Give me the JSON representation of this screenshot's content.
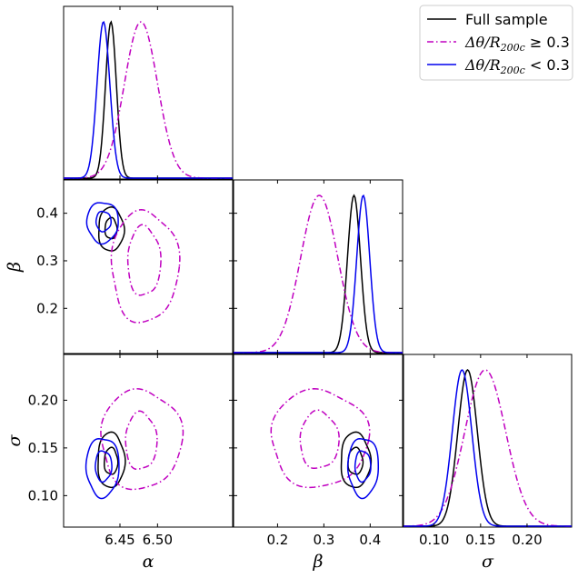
{
  "chart_data": {
    "type": "corner",
    "parameters": [
      "α",
      "β",
      "σ"
    ],
    "ranges": {
      "alpha": [
        6.375,
        6.6
      ],
      "beta": [
        0.105,
        0.47
      ],
      "sigma": [
        0.067,
        0.248
      ]
    },
    "ticks": {
      "alpha": {
        "values": [
          6.45,
          6.5
        ],
        "labels": [
          "6.45",
          "6.50"
        ]
      },
      "beta": {
        "values": [
          0.2,
          0.3,
          0.4
        ],
        "labels": [
          "0.2",
          "0.3",
          "0.4"
        ]
      },
      "sigma": {
        "values": [
          0.1,
          0.15,
          0.2
        ],
        "labels": [
          "0.10",
          "0.15",
          "0.20"
        ]
      }
    },
    "legend": {
      "placement": "top-right",
      "entries": [
        {
          "label": "Full sample",
          "math_sub": "",
          "math_tail": "",
          "color": "#000000",
          "dash": "solid"
        },
        {
          "label": "Δθ/R",
          "math_sub": "200c",
          "math_tail": " ≥ 0.3",
          "color": "#c000c0",
          "dash": "dashdot"
        },
        {
          "label": "Δθ/R",
          "math_sub": "200c",
          "math_tail": " < 0.3",
          "color": "#0000ee",
          "dash": "solid"
        }
      ]
    },
    "series": [
      {
        "name": "Full sample",
        "color": "#000000",
        "dash": "solid",
        "marginals": {
          "alpha": {
            "mean": 6.438,
            "sd": 0.0072
          },
          "beta": {
            "mean": 0.365,
            "sd": 0.014
          },
          "sigma": {
            "mean": 0.136,
            "sd": 0.0105
          }
        },
        "contours": {
          "alpha_beta": [
            {
              "cx": 6.438,
              "cy": 0.368,
              "rx": 0.008,
              "ry": 0.022
            },
            {
              "cx": 6.438,
              "cy": 0.366,
              "rx": 0.017,
              "ry": 0.046
            }
          ],
          "alpha_sigma": [
            {
              "cx": 6.438,
              "cy": 0.136,
              "rx": 0.009,
              "ry": 0.014
            },
            {
              "cx": 6.438,
              "cy": 0.137,
              "rx": 0.018,
              "ry": 0.029
            }
          ],
          "beta_sigma": [
            {
              "cx": 0.368,
              "cy": 0.136,
              "rx": 0.016,
              "ry": 0.014
            },
            {
              "cx": 0.368,
              "cy": 0.137,
              "rx": 0.032,
              "ry": 0.029
            }
          ]
        }
      },
      {
        "name": "Δθ/R200c ≥ 0.3",
        "color": "#c000c0",
        "dash": "dashdot",
        "marginals": {
          "alpha": {
            "mean": 6.478,
            "sd": 0.022
          },
          "beta": {
            "mean": 0.29,
            "sd": 0.04
          },
          "sigma": {
            "mean": 0.155,
            "sd": 0.022
          }
        },
        "contours": {
          "alpha_beta": [
            {
              "cx": 6.482,
              "cy": 0.299,
              "rx": 0.022,
              "ry": 0.073
            },
            {
              "cx": 6.483,
              "cy": 0.288,
              "rx": 0.045,
              "ry": 0.117
            }
          ],
          "alpha_sigma": [
            {
              "cx": 6.478,
              "cy": 0.157,
              "rx": 0.021,
              "ry": 0.03
            },
            {
              "cx": 6.478,
              "cy": 0.159,
              "rx": 0.054,
              "ry": 0.052
            }
          ],
          "beta_sigma": [
            {
              "cx": 0.29,
              "cy": 0.158,
              "rx": 0.042,
              "ry": 0.03
            },
            {
              "cx": 0.29,
              "cy": 0.16,
              "rx": 0.105,
              "ry": 0.051
            }
          ]
        }
      },
      {
        "name": "Δθ/R200c < 0.3",
        "color": "#0000ee",
        "dash": "solid",
        "marginals": {
          "alpha": {
            "mean": 6.428,
            "sd": 0.0085
          },
          "beta": {
            "mean": 0.385,
            "sd": 0.014
          },
          "sigma": {
            "mean": 0.13,
            "sd": 0.0105
          }
        },
        "contours": {
          "alpha_beta": [
            {
              "cx": 6.428,
              "cy": 0.383,
              "rx": 0.01,
              "ry": 0.021
            },
            {
              "cx": 6.427,
              "cy": 0.381,
              "rx": 0.021,
              "ry": 0.043
            }
          ],
          "alpha_sigma": [
            {
              "cx": 6.428,
              "cy": 0.131,
              "rx": 0.011,
              "ry": 0.016
            },
            {
              "cx": 6.427,
              "cy": 0.13,
              "rx": 0.022,
              "ry": 0.031
            }
          ],
          "beta_sigma": [
            {
              "cx": 0.384,
              "cy": 0.131,
              "rx": 0.017,
              "ry": 0.016
            },
            {
              "cx": 0.385,
              "cy": 0.13,
              "rx": 0.033,
              "ry": 0.031
            }
          ]
        }
      }
    ],
    "grid": false
  }
}
